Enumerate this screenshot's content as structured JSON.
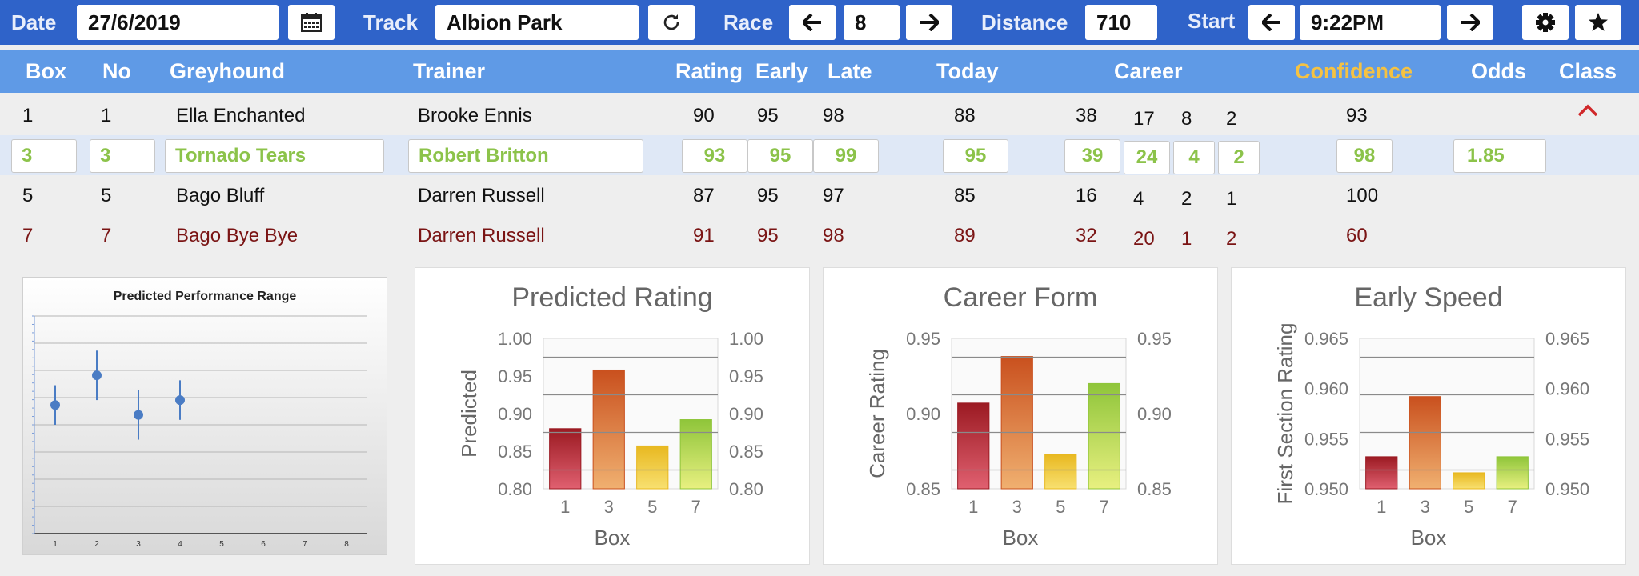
{
  "toolbar": {
    "date_label": "Date",
    "date_value": "27/6/2019",
    "track_label": "Track",
    "track_value": "Albion Park",
    "race_label": "Race",
    "race_value": "8",
    "distance_label": "Distance",
    "distance_value": "710",
    "start_label": "Start",
    "start_value": "9:22PM",
    "icons": [
      "calendar-icon",
      "refresh-icon",
      "arrow-left-icon",
      "arrow-right-icon",
      "gear-icon",
      "star-icon"
    ]
  },
  "table": {
    "headers": {
      "box": "Box",
      "no": "No",
      "greyhound": "Greyhound",
      "trainer": "Trainer",
      "rating": "Rating",
      "early": "Early",
      "late": "Late",
      "today": "Today",
      "career": "Career",
      "confidence": "Confidence",
      "odds": "Odds",
      "class": "Class"
    },
    "rows": [
      {
        "box": "1",
        "no": "1",
        "greyhound": "Ella Enchanted",
        "trainer": "Brooke Ennis",
        "rating": "90",
        "early": "95",
        "late": "98",
        "today": "88",
        "career": [
          "38",
          "17",
          "8",
          "2"
        ],
        "confidence": "93",
        "odds": ""
      },
      {
        "box": "3",
        "no": "3",
        "greyhound": "Tornado Tears",
        "trainer": "Robert Britton",
        "rating": "93",
        "early": "95",
        "late": "99",
        "today": "95",
        "career": [
          "39",
          "24",
          "4",
          "2"
        ],
        "confidence": "98",
        "odds": "1.85"
      },
      {
        "box": "5",
        "no": "5",
        "greyhound": "Bago Bluff",
        "trainer": "Darren Russell",
        "rating": "87",
        "early": "95",
        "late": "97",
        "today": "85",
        "career": [
          "16",
          "4",
          "2",
          "1"
        ],
        "confidence": "100",
        "odds": ""
      },
      {
        "box": "7",
        "no": "7",
        "greyhound": "Bago Bye Bye",
        "trainer": "Darren Russell",
        "rating": "91",
        "early": "95",
        "late": "98",
        "today": "89",
        "career": [
          "32",
          "20",
          "1",
          "2"
        ],
        "confidence": "60",
        "odds": ""
      }
    ],
    "colors": {
      "selected_text": "#8cc34a",
      "highlight_row_text": "#7a1414",
      "header_bg": "#5f9ae6",
      "toolbar_bg": "#2f63c9",
      "confidence_header": "#f5c242"
    }
  },
  "chart_data": [
    {
      "type": "scatter",
      "title": "Predicted Performance Range",
      "x": [
        1,
        2,
        3,
        4
      ],
      "y": [
        0.91,
        0.94,
        0.9,
        0.915
      ],
      "error": [
        0.02,
        0.025,
        0.025,
        0.02
      ],
      "xticks": [
        "1",
        "2",
        "3",
        "4",
        "5",
        "6",
        "7",
        "8"
      ],
      "xlim": [
        0.5,
        8.5
      ],
      "ylim": [
        0.78,
        1.0
      ],
      "grid": true,
      "color": "#4a7cc4"
    },
    {
      "type": "bar",
      "title": "Predicted Rating",
      "categories": [
        "1",
        "3",
        "5",
        "7"
      ],
      "values": [
        0.88,
        0.958,
        0.857,
        0.892
      ],
      "xlabel": "Box",
      "ylabel": "Predicted",
      "ylim": [
        0.8,
        1.0
      ],
      "yticks": [
        "0.80",
        "0.85",
        "0.90",
        "0.95",
        "1.00"
      ],
      "bar_colors": [
        [
          "#9b1a22",
          "#e06070"
        ],
        [
          "#c9501e",
          "#f0b070"
        ],
        [
          "#e8b820",
          "#f8e070"
        ],
        [
          "#8fc53a",
          "#e8f080"
        ]
      ],
      "grid": true
    },
    {
      "type": "bar",
      "title": "Career Form",
      "categories": [
        "1",
        "3",
        "5",
        "7"
      ],
      "values": [
        0.907,
        0.938,
        0.873,
        0.92
      ],
      "xlabel": "Box",
      "ylabel": "Career Rating",
      "ylim": [
        0.85,
        0.95
      ],
      "yticks": [
        "0.85",
        "0.90",
        "0.95"
      ],
      "bar_colors": [
        [
          "#9b1a22",
          "#e06070"
        ],
        [
          "#c9501e",
          "#f0b070"
        ],
        [
          "#e8b820",
          "#f8e070"
        ],
        [
          "#8fc53a",
          "#e8f080"
        ]
      ],
      "grid": true
    },
    {
      "type": "bar",
      "title": "Early Speed",
      "categories": [
        "1",
        "3",
        "5",
        "7"
      ],
      "values": [
        0.9532,
        0.9592,
        0.9516,
        0.9532
      ],
      "xlabel": "Box",
      "ylabel": "First Section Rating",
      "ylim": [
        0.95,
        0.965
      ],
      "yticks": [
        "0.950",
        "0.955",
        "0.960",
        "0.965"
      ],
      "bar_colors": [
        [
          "#9b1a22",
          "#e06070"
        ],
        [
          "#c9501e",
          "#f0b070"
        ],
        [
          "#e8b820",
          "#f8e070"
        ],
        [
          "#8fc53a",
          "#e8f080"
        ]
      ],
      "grid": true
    }
  ]
}
